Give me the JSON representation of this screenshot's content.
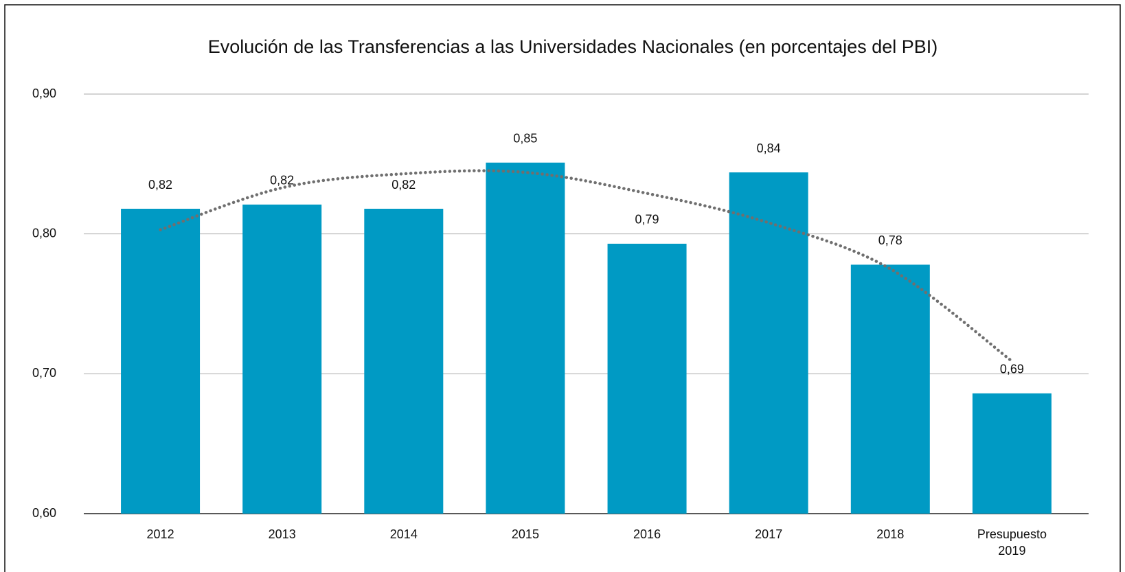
{
  "chart_data": {
    "type": "bar",
    "title": "Evolución de las Transferencias a las Universidades Nacionales (en porcentajes del PBI)",
    "categories": [
      "2012",
      "2013",
      "2014",
      "2015",
      "2016",
      "2017",
      "2018",
      "Presupuesto 2019"
    ],
    "values": [
      0.818,
      0.821,
      0.818,
      0.851,
      0.793,
      0.844,
      0.778,
      0.686
    ],
    "value_labels": [
      "0,82",
      "0,82",
      "0,82",
      "0,85",
      "0,79",
      "0,84",
      "0,78",
      "0,69"
    ],
    "color": "#009ac4",
    "trendline": {
      "values": [
        0.803,
        0.833,
        0.843,
        0.844,
        0.829,
        0.808,
        0.775,
        0.709
      ],
      "color": "#6f6f6f",
      "style": "dotted"
    },
    "ylim": [
      0.6,
      0.9
    ],
    "yticks": [
      {
        "value": 0.6,
        "label": "0,60"
      },
      {
        "value": 0.7,
        "label": "0,70"
      },
      {
        "value": 0.8,
        "label": "0,80"
      },
      {
        "value": 0.9,
        "label": "0,90"
      }
    ],
    "grid": true
  }
}
